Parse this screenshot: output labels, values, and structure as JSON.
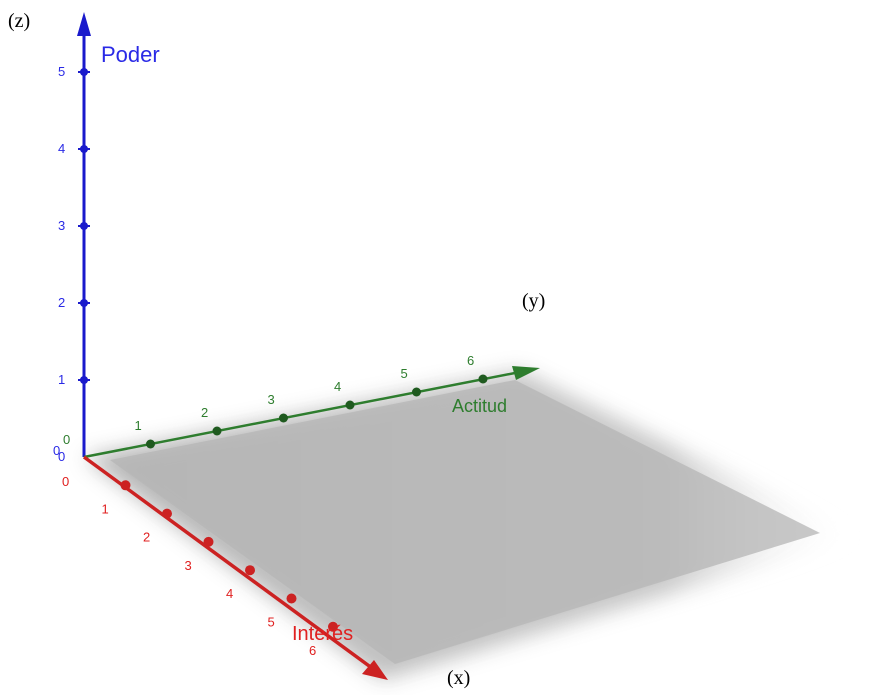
{
  "outer_labels": {
    "z": "(z)",
    "y": "(y)",
    "x": "(x)"
  },
  "axes": {
    "z": {
      "name": "Poder",
      "color": "#1a1acc",
      "tick_color": "#2a2ae6",
      "ticks": [
        "0",
        "1",
        "2",
        "3",
        "4",
        "5"
      ],
      "origin_tick": "0"
    },
    "y": {
      "name": "Actitud",
      "color": "#2e7d2e",
      "ticks": [
        "1",
        "2",
        "3",
        "4",
        "5",
        "6"
      ],
      "origin_tick": "0"
    },
    "x": {
      "name": "Interés",
      "color": "#cc2222",
      "tick_color": "#e02020",
      "ticks": [
        "1",
        "2",
        "3",
        "4",
        "5",
        "6"
      ],
      "origin_tick": "0"
    }
  },
  "plane_color": "#b0b0b0"
}
